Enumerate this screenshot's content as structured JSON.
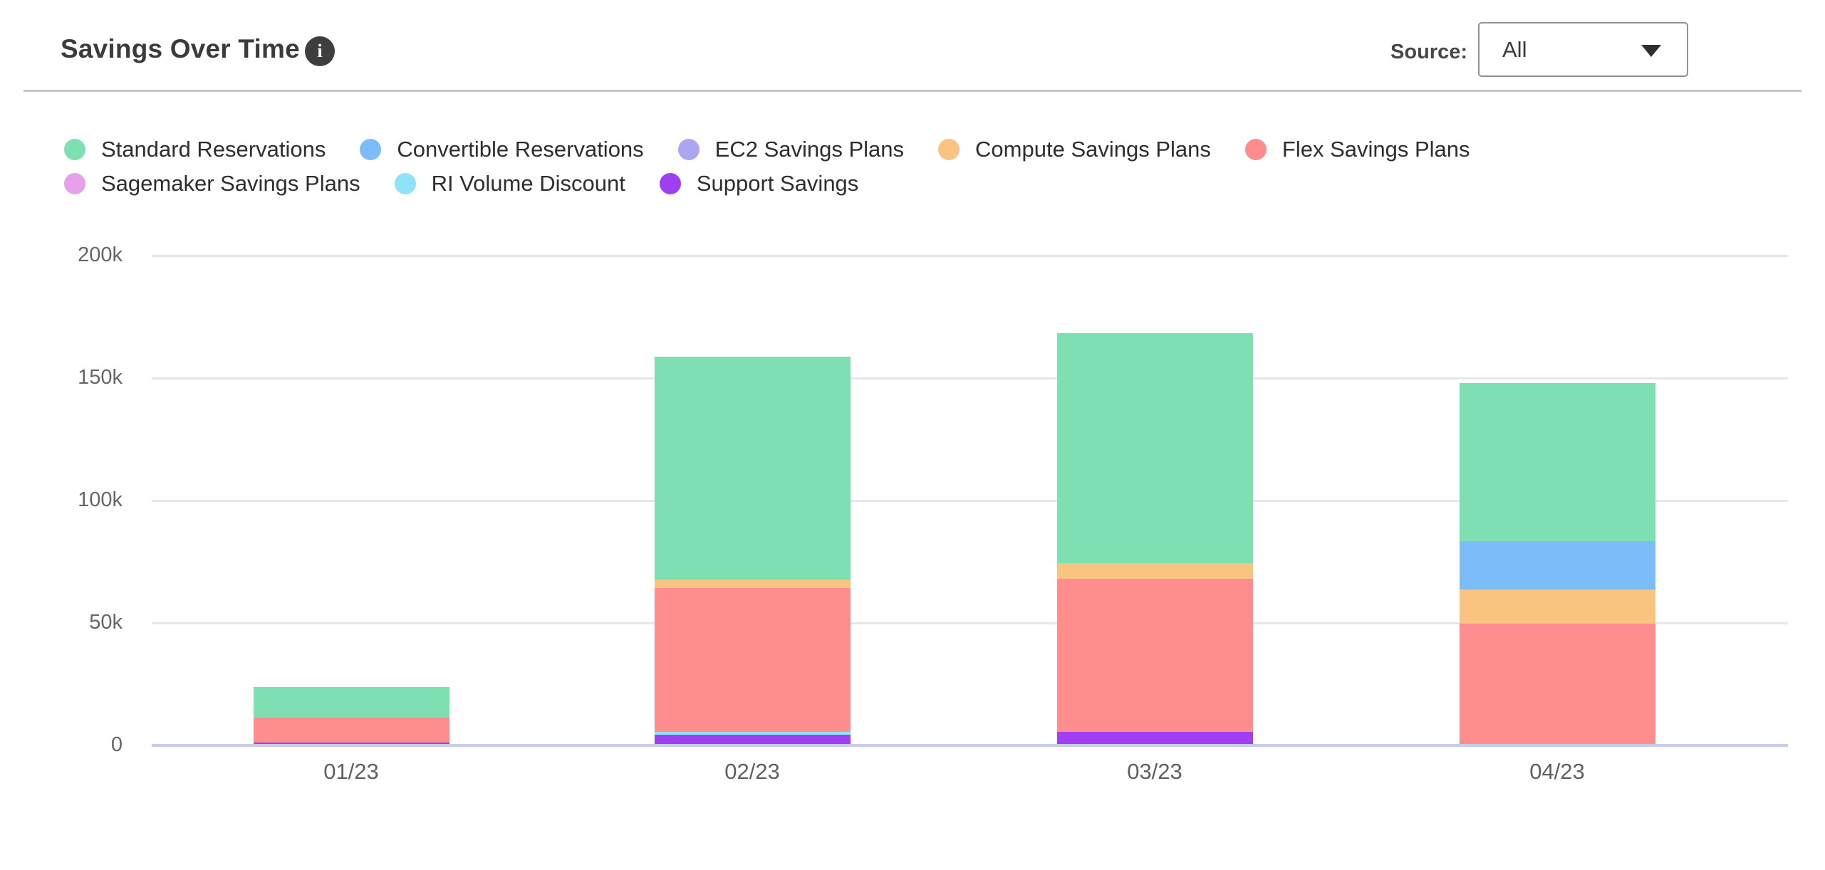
{
  "header": {
    "title": "Savings Over Time",
    "source_label": "Source:",
    "source_value": "All"
  },
  "chart_data": {
    "type": "bar",
    "stacked": true,
    "title": "Savings Over Time",
    "categories": [
      "01/23",
      "02/23",
      "03/23",
      "04/23"
    ],
    "series": [
      {
        "name": "Standard Reservations",
        "color": "#7edfb2",
        "values": [
          12.5,
          91.0,
          94.0,
          64.6
        ]
      },
      {
        "name": "Convertible Reservations",
        "color": "#7cbdf9",
        "values": [
          0,
          0,
          0,
          19.7
        ]
      },
      {
        "name": "EC2 Savings Plans",
        "color": "#aca5f1",
        "values": [
          0,
          0,
          0,
          0
        ]
      },
      {
        "name": "Compute Savings Plans",
        "color": "#f8c480",
        "values": [
          0,
          3.5,
          6.4,
          14.0
        ]
      },
      {
        "name": "Flex Savings Plans",
        "color": "#ff8d8d",
        "values": [
          10.1,
          58.7,
          62.5,
          49.7
        ]
      },
      {
        "name": "Sagemaker Savings Plans",
        "color": "#e6a1ea",
        "values": [
          0,
          0,
          0,
          0
        ]
      },
      {
        "name": "RI Volume Discount",
        "color": "#8ee4f7",
        "values": [
          0,
          1.1,
          0,
          0
        ]
      },
      {
        "name": "Support Savings",
        "color": "#a03ef2",
        "values": [
          1.2,
          4.4,
          5.5,
          0
        ]
      }
    ],
    "stack_order_bottom_to_top": [
      "Support Savings",
      "RI Volume Discount",
      "Sagemaker Savings Plans",
      "Flex Savings Plans",
      "Compute Savings Plans",
      "EC2 Savings Plans",
      "Convertible Reservations",
      "Standard Reservations"
    ],
    "totals": [
      23.8,
      158.7,
      168.4,
      148.0
    ],
    "y_ticks": [
      "200k",
      "150k",
      "100k",
      "50k",
      "0"
    ],
    "y_tick_values": [
      200,
      150,
      100,
      50,
      0
    ],
    "ylim": [
      0,
      200
    ],
    "value_unit": "k",
    "legend_position": "top-left",
    "grid": "horizontal",
    "xlabel": "",
    "ylabel": ""
  },
  "colors": {
    "axis_baseline": "#c7cde9",
    "gridline": "#e7e7e7",
    "divider": "#c6c6c6",
    "info_icon_bg": "#3e3e3e"
  }
}
